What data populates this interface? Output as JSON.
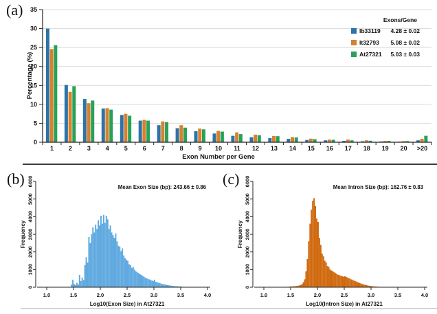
{
  "chart_data": [
    {
      "id": "a",
      "type": "bar",
      "panel_label": "(a)",
      "xlabel": "Exon Number per Gene",
      "ylabel": "Percentage (%)",
      "ylim": [
        0,
        35
      ],
      "ytick_step": 5,
      "grid": "horizontal",
      "legend_position": "top-right",
      "legend_title": "Exons/Gene",
      "categories": [
        "1",
        "2",
        "3",
        "4",
        "5",
        "6",
        "7",
        "8",
        "9",
        "10",
        "11",
        "12",
        "13",
        "14",
        "15",
        "16",
        "17",
        "18",
        "19",
        "20",
        ">20"
      ],
      "series": [
        {
          "name": "Ib33119",
          "exons_per_gene": "4.28 ± 0.02",
          "color": "#2e73a6",
          "values": [
            30.0,
            15.1,
            11.4,
            8.9,
            7.2,
            5.7,
            4.5,
            3.7,
            2.9,
            2.3,
            1.7,
            1.3,
            1.1,
            0.9,
            0.6,
            0.5,
            0.35,
            0.25,
            0.2,
            0.15,
            0.5
          ]
        },
        {
          "name": "It32793",
          "exons_per_gene": "5.08 ± 0.02",
          "color": "#d8812c",
          "values": [
            24.6,
            13.3,
            10.3,
            9.0,
            7.5,
            5.9,
            5.5,
            4.5,
            3.6,
            3.0,
            2.6,
            2.0,
            1.65,
            1.35,
            0.95,
            0.7,
            0.7,
            0.5,
            0.35,
            0.3,
            0.9
          ]
        },
        {
          "name": "At27321",
          "exons_per_gene": "5.03 ± 0.03",
          "color": "#28a15b",
          "values": [
            25.6,
            14.8,
            11.0,
            8.6,
            7.0,
            5.7,
            5.3,
            3.85,
            3.4,
            2.8,
            2.15,
            1.85,
            1.6,
            1.25,
            0.8,
            0.65,
            0.5,
            0.4,
            0.35,
            0.3,
            1.7
          ]
        }
      ]
    },
    {
      "id": "b",
      "type": "histogram",
      "panel_label": "(b)",
      "annotation": "Mean Exon Size (bp): 243.66 ± 0.86",
      "xlabel": "Log10(Exon Size) in At27321",
      "ylabel": "Frequency",
      "xlim": [
        1.0,
        4.0
      ],
      "ylim": [
        0,
        6000
      ],
      "xticks": [
        "1.0",
        "1.5",
        "2.0",
        "2.5",
        "3.0",
        "3.5",
        "4.0"
      ],
      "yticks": [
        "0",
        "1000",
        "2000",
        "3000",
        "4000",
        "5000",
        "6000"
      ],
      "bar_color": "#5fa9e0",
      "bins": {
        "x_start": 1.45,
        "x_step": 0.025,
        "frequencies": [
          150,
          420,
          180,
          120,
          250,
          160,
          700,
          350,
          550,
          400,
          1250,
          1700,
          1400,
          2850,
          2500,
          3000,
          3400,
          3100,
          3550,
          3300,
          3800,
          3500,
          4050,
          3600,
          4100,
          3650,
          4050,
          3850,
          3300,
          3500,
          3100,
          2950,
          2800,
          3050,
          2600,
          2350,
          2300,
          2050,
          2200,
          1800,
          1650,
          1550,
          1500,
          1300,
          1250,
          1100,
          1150,
          1000,
          900,
          850,
          800,
          750,
          700,
          650,
          600,
          550,
          500,
          480,
          450,
          400,
          380,
          350,
          420,
          300,
          280,
          250,
          230,
          200,
          180,
          160,
          150,
          130,
          120,
          100,
          90,
          80,
          70,
          60,
          55,
          50,
          45,
          40,
          35,
          25,
          20,
          18,
          15,
          12,
          10,
          10,
          8,
          8,
          6,
          6,
          5,
          5,
          4,
          4
        ]
      }
    },
    {
      "id": "c",
      "type": "histogram",
      "panel_label": "(c)",
      "annotation": "Mean Intron Size (bp): 162.76 ± 0.83",
      "xlabel": "Log10(Intron Size) in At27321",
      "ylabel": "Frequency",
      "xlim": [
        1.0,
        4.0
      ],
      "ylim": [
        0,
        6000
      ],
      "xticks": [
        "1.0",
        "1.5",
        "2.0",
        "2.5",
        "3.0",
        "3.5",
        "4.0"
      ],
      "yticks": [
        "0",
        "1000",
        "2000",
        "3000",
        "4000",
        "5000",
        "6000"
      ],
      "bar_color": "#d0690e",
      "bins": {
        "x_start": 1.4,
        "x_step": 0.025,
        "frequencies": [
          20,
          25,
          30,
          35,
          40,
          45,
          55,
          60,
          70,
          80,
          100,
          130,
          180,
          280,
          450,
          900,
          1600,
          2600,
          3600,
          4400,
          4900,
          5050,
          4600,
          3900,
          3700,
          2800,
          2400,
          1900,
          1750,
          1500,
          1400,
          1200,
          1150,
          1000,
          950,
          900,
          850,
          800,
          750,
          700,
          680,
          650,
          620,
          600,
          620,
          580,
          550,
          500,
          480,
          440,
          400,
          370,
          340,
          300,
          270,
          240,
          210,
          180,
          160,
          140,
          120,
          100,
          85,
          70,
          60,
          50,
          40,
          35,
          30,
          25,
          20,
          15,
          12,
          10,
          8,
          6,
          5
        ]
      }
    }
  ]
}
